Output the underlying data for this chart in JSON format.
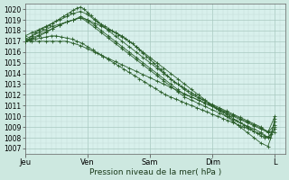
{
  "background_color": "#cde8e0",
  "plot_bg_color": "#d8f0ec",
  "grid_color_major": "#a8c8c0",
  "grid_color_minor": "#c0dcd8",
  "line_color": "#2a5e2a",
  "ylim": [
    1006.5,
    1020.5
  ],
  "yticks": [
    1007,
    1008,
    1009,
    1010,
    1011,
    1012,
    1013,
    1014,
    1015,
    1016,
    1017,
    1018,
    1019,
    1020
  ],
  "xlabel": "Pression niveau de la mer( hPa )",
  "xtick_labels": [
    "Jeu",
    "Ven",
    "Sam",
    "Dim",
    "L"
  ],
  "xtick_positions": [
    0,
    72,
    144,
    216,
    288
  ],
  "xlim": [
    0,
    300
  ],
  "lines": [
    [
      0,
      1017.0,
      4,
      1017.2,
      8,
      1017.5,
      12,
      1017.8,
      16,
      1018.0,
      20,
      1018.2,
      24,
      1018.3,
      28,
      1018.5,
      32,
      1018.7,
      36,
      1018.9,
      40,
      1019.1,
      44,
      1019.3,
      48,
      1019.5,
      52,
      1019.7,
      56,
      1019.9,
      60,
      1020.1,
      64,
      1020.2,
      68,
      1020.0,
      72,
      1019.7,
      76,
      1019.4,
      80,
      1019.1,
      84,
      1018.8,
      88,
      1018.6,
      92,
      1018.4,
      96,
      1018.2,
      100,
      1018.0,
      104,
      1017.8,
      108,
      1017.6,
      112,
      1017.4,
      116,
      1017.2,
      120,
      1017.0,
      124,
      1016.8,
      128,
      1016.5,
      132,
      1016.2,
      136,
      1015.9,
      140,
      1015.6,
      144,
      1015.3,
      148,
      1015.0,
      152,
      1014.7,
      156,
      1014.4,
      160,
      1014.1,
      164,
      1013.8,
      168,
      1013.5,
      172,
      1013.2,
      176,
      1013.0,
      180,
      1012.8,
      184,
      1012.6,
      188,
      1012.4,
      192,
      1012.2,
      196,
      1012.0,
      200,
      1011.8,
      204,
      1011.6,
      208,
      1011.4,
      212,
      1011.2,
      216,
      1011.0,
      220,
      1010.8,
      224,
      1010.6,
      228,
      1010.4,
      232,
      1010.2,
      236,
      1010.0,
      240,
      1009.8,
      244,
      1009.6,
      248,
      1009.4,
      252,
      1009.2,
      256,
      1009.0,
      260,
      1008.8,
      264,
      1008.6,
      268,
      1008.4,
      272,
      1008.2,
      276,
      1008.0,
      280,
      1008.1,
      284,
      1008.3,
      288,
      1009.8
    ],
    [
      0,
      1017.0,
      8,
      1017.3,
      16,
      1017.6,
      24,
      1017.9,
      32,
      1018.2,
      40,
      1018.5,
      48,
      1018.8,
      56,
      1019.0,
      64,
      1019.2,
      72,
      1019.0,
      80,
      1018.7,
      88,
      1018.4,
      96,
      1018.1,
      104,
      1017.8,
      112,
      1017.5,
      120,
      1017.0,
      128,
      1016.5,
      136,
      1016.0,
      144,
      1015.5,
      152,
      1015.0,
      160,
      1014.5,
      168,
      1014.0,
      176,
      1013.5,
      184,
      1013.0,
      192,
      1012.5,
      200,
      1012.0,
      208,
      1011.5,
      216,
      1011.0,
      224,
      1010.5,
      232,
      1010.0,
      240,
      1009.5,
      248,
      1009.0,
      256,
      1008.5,
      264,
      1008.0,
      272,
      1007.5,
      280,
      1007.2,
      288,
      1009.0
    ],
    [
      0,
      1017.0,
      8,
      1017.2,
      16,
      1017.5,
      24,
      1017.8,
      32,
      1018.2,
      40,
      1018.5,
      48,
      1018.8,
      56,
      1019.0,
      64,
      1019.3,
      72,
      1019.0,
      80,
      1018.5,
      88,
      1018.0,
      96,
      1017.5,
      104,
      1017.0,
      112,
      1016.5,
      120,
      1016.0,
      128,
      1015.5,
      136,
      1015.0,
      144,
      1014.5,
      152,
      1014.0,
      160,
      1013.5,
      168,
      1013.0,
      176,
      1012.5,
      184,
      1012.0,
      192,
      1011.8,
      200,
      1011.5,
      208,
      1011.2,
      216,
      1011.0,
      224,
      1010.7,
      232,
      1010.4,
      240,
      1010.1,
      248,
      1009.8,
      256,
      1009.5,
      264,
      1009.2,
      272,
      1008.9,
      280,
      1008.6,
      288,
      1008.5
    ],
    [
      0,
      1017.5,
      8,
      1017.8,
      16,
      1018.1,
      24,
      1018.4,
      32,
      1018.7,
      40,
      1019.0,
      48,
      1019.3,
      56,
      1019.6,
      64,
      1019.8,
      72,
      1019.5,
      80,
      1019.0,
      88,
      1018.5,
      96,
      1018.0,
      104,
      1017.5,
      112,
      1017.0,
      120,
      1016.5,
      128,
      1016.0,
      136,
      1015.5,
      144,
      1015.0,
      152,
      1014.5,
      160,
      1014.0,
      168,
      1013.5,
      176,
      1013.0,
      184,
      1012.5,
      192,
      1012.0,
      200,
      1011.7,
      208,
      1011.4,
      216,
      1011.1,
      224,
      1010.8,
      232,
      1010.5,
      240,
      1010.2,
      248,
      1009.9,
      256,
      1009.6,
      264,
      1009.3,
      272,
      1009.0,
      280,
      1008.5,
      288,
      1009.2
    ],
    [
      0,
      1017.2,
      8,
      1017.5,
      16,
      1017.8,
      24,
      1018.1,
      32,
      1018.4,
      40,
      1018.6,
      48,
      1018.8,
      56,
      1019.0,
      64,
      1019.2,
      72,
      1018.8,
      80,
      1018.3,
      88,
      1017.8,
      96,
      1017.3,
      104,
      1016.8,
      112,
      1016.3,
      120,
      1015.8,
      128,
      1015.3,
      136,
      1014.8,
      144,
      1014.3,
      152,
      1013.8,
      160,
      1013.3,
      168,
      1012.8,
      176,
      1012.3,
      184,
      1011.8,
      192,
      1011.5,
      200,
      1011.2,
      208,
      1010.9,
      216,
      1010.6,
      224,
      1010.3,
      232,
      1010.0,
      240,
      1009.7,
      248,
      1009.4,
      256,
      1009.1,
      264,
      1008.8,
      272,
      1008.5,
      280,
      1008.0,
      288,
      1008.8
    ],
    [
      0,
      1017.0,
      6,
      1017.1,
      12,
      1017.2,
      18,
      1017.3,
      24,
      1017.4,
      30,
      1017.5,
      36,
      1017.5,
      42,
      1017.4,
      48,
      1017.3,
      54,
      1017.2,
      60,
      1017.0,
      66,
      1016.8,
      72,
      1016.5,
      78,
      1016.2,
      84,
      1015.9,
      90,
      1015.6,
      96,
      1015.3,
      102,
      1015.0,
      108,
      1014.7,
      114,
      1014.4,
      120,
      1014.1,
      126,
      1013.8,
      132,
      1013.5,
      138,
      1013.2,
      144,
      1012.9,
      150,
      1012.6,
      156,
      1012.3,
      162,
      1012.0,
      168,
      1011.8,
      174,
      1011.6,
      180,
      1011.4,
      186,
      1011.2,
      192,
      1011.0,
      198,
      1010.8,
      204,
      1010.6,
      210,
      1010.4,
      216,
      1010.2,
      222,
      1010.0,
      228,
      1009.8,
      234,
      1009.6,
      240,
      1009.4,
      246,
      1009.2,
      252,
      1009.0,
      258,
      1008.8,
      264,
      1008.6,
      270,
      1008.4,
      276,
      1008.2,
      282,
      1008.0,
      288,
      1009.5
    ],
    [
      0,
      1017.0,
      8,
      1017.0,
      16,
      1017.0,
      24,
      1017.0,
      32,
      1017.0,
      40,
      1017.0,
      48,
      1017.0,
      56,
      1016.8,
      64,
      1016.6,
      72,
      1016.3,
      80,
      1016.0,
      88,
      1015.7,
      96,
      1015.4,
      104,
      1015.1,
      112,
      1014.8,
      120,
      1014.5,
      128,
      1014.2,
      136,
      1013.9,
      144,
      1013.6,
      152,
      1013.3,
      160,
      1013.0,
      168,
      1012.7,
      176,
      1012.4,
      184,
      1012.1,
      192,
      1011.8,
      200,
      1011.5,
      208,
      1011.2,
      216,
      1010.9,
      224,
      1010.6,
      232,
      1010.3,
      240,
      1010.0,
      248,
      1009.7,
      256,
      1009.4,
      264,
      1009.1,
      272,
      1008.8,
      280,
      1008.5,
      288,
      1010.0
    ]
  ]
}
